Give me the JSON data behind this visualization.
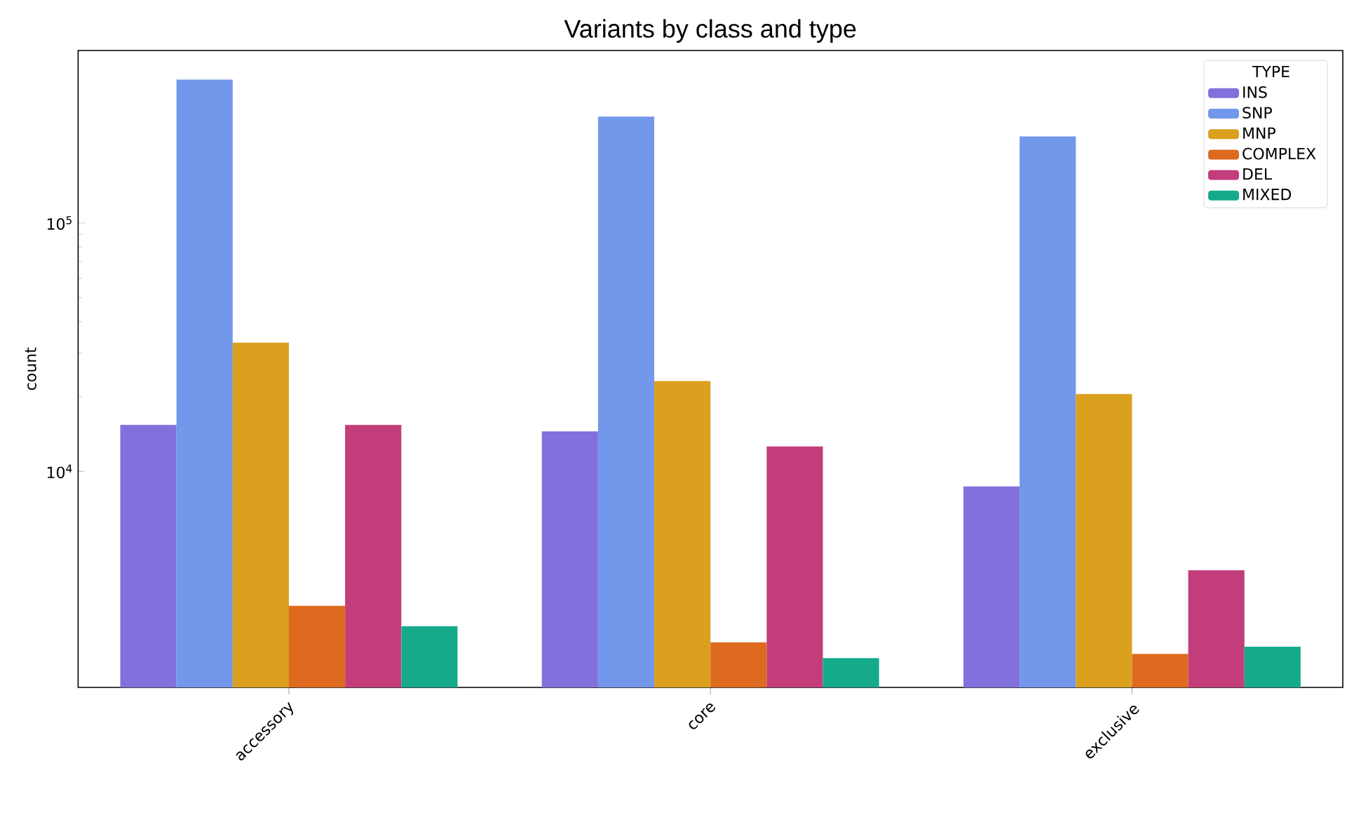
{
  "chart_data": {
    "type": "bar",
    "title": "Variants by class and type",
    "ylabel": "count",
    "legend_title": "TYPE",
    "categories": [
      "accessory",
      "core",
      "exclusive"
    ],
    "series": [
      {
        "name": "INS",
        "color": "#8370dd",
        "values": [
          15400,
          14500,
          8700
        ]
      },
      {
        "name": "SNP",
        "color": "#7397ea",
        "values": [
          378000,
          268000,
          223000
        ]
      },
      {
        "name": "MNP",
        "color": "#dba01e",
        "values": [
          33000,
          23100,
          20500
        ]
      },
      {
        "name": "COMPLEX",
        "color": "#de6a1f",
        "values": [
          2880,
          2050,
          1840
        ]
      },
      {
        "name": "DEL",
        "color": "#c33d7a",
        "values": [
          15400,
          12600,
          4000
        ]
      },
      {
        "name": "MIXED",
        "color": "#15aa8a",
        "values": [
          2380,
          1770,
          1970
        ]
      }
    ],
    "log": "y",
    "ylim": [
      1350,
      495000
    ],
    "yticks": [
      {
        "value": 10000,
        "label": "10$^{4}$"
      },
      {
        "value": 100000,
        "label": "10$^{5}$"
      }
    ],
    "legend": "top right",
    "grid": false
  }
}
